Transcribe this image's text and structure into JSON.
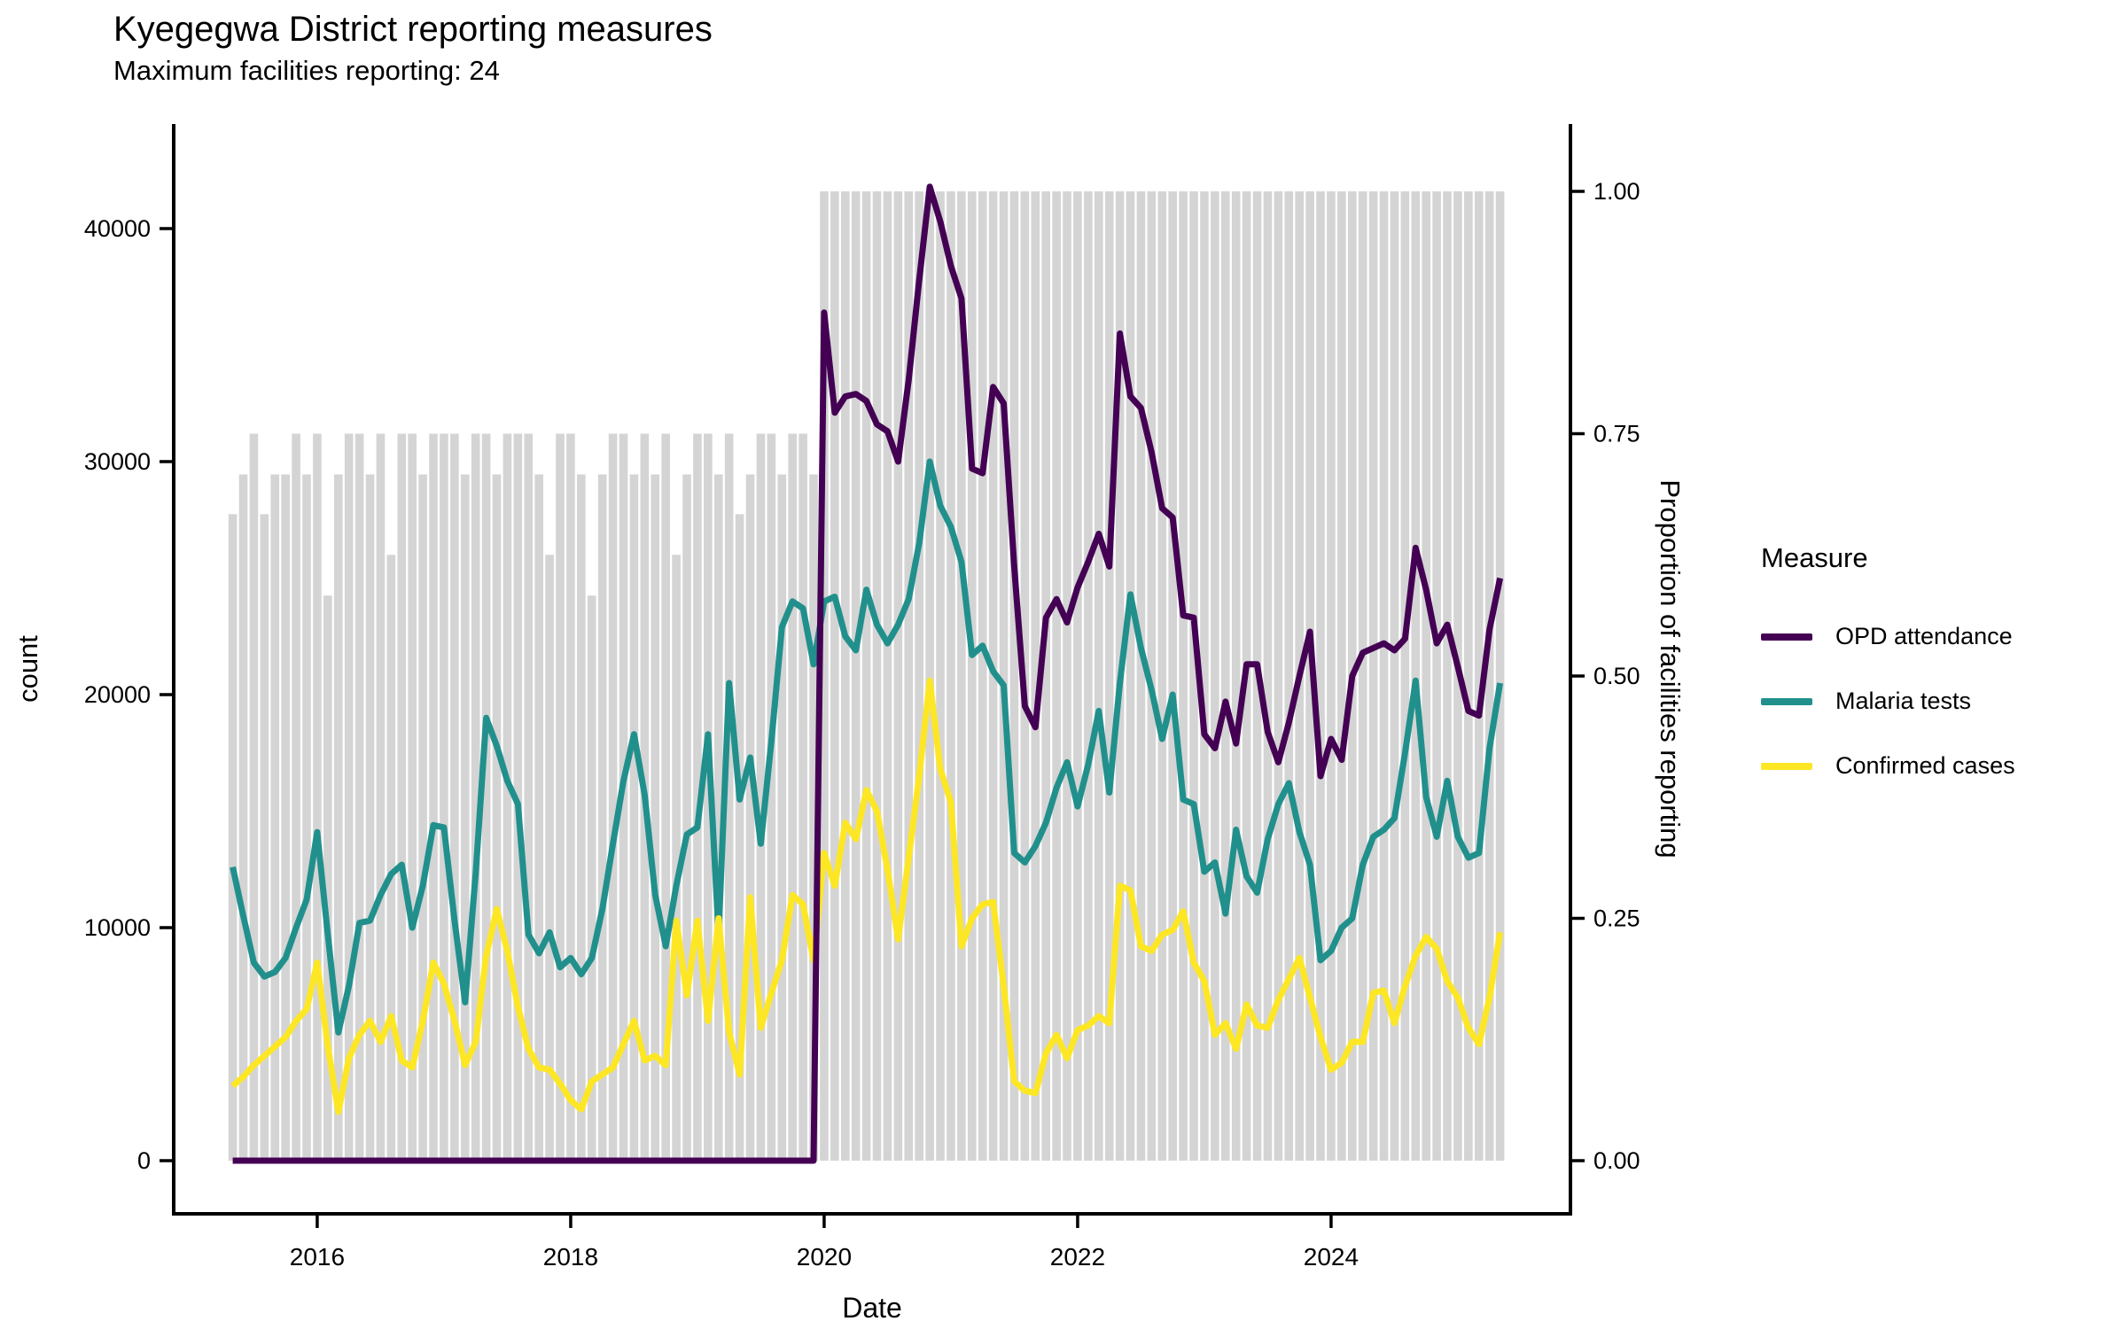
{
  "header": {
    "title": "Kyegegwa District reporting measures",
    "subtitle": "Maximum facilities reporting: 24"
  },
  "legend": {
    "title": "Measure",
    "items": [
      {
        "label": "OPD attendance"
      },
      {
        "label": "Malaria tests"
      },
      {
        "label": "Confirmed cases"
      }
    ]
  },
  "chart_data": {
    "type": "line",
    "title": "Kyegegwa District reporting measures",
    "subtitle": "Maximum facilities reporting: 24",
    "start_month": "2015-05",
    "n_months": 121,
    "x_axis": {
      "label": "Date",
      "tick_years": [
        2016,
        2018,
        2020,
        2022,
        2024
      ]
    },
    "y_left": {
      "label": "count",
      "ticks": [
        0,
        10000,
        20000,
        30000,
        40000
      ],
      "max": 43000
    },
    "y_right": {
      "label": "Proportion of facilities reporting",
      "ticks": [
        0.0,
        0.25,
        0.5,
        0.75,
        1.0
      ],
      "max": 1.0
    },
    "grid": false,
    "legend_position": "right",
    "bars": {
      "name": "Proportion of facilities reporting",
      "color": "#d4d4d4",
      "values": [
        0.667,
        0.708,
        0.75,
        0.667,
        0.708,
        0.708,
        0.75,
        0.708,
        0.75,
        0.583,
        0.708,
        0.75,
        0.75,
        0.708,
        0.75,
        0.625,
        0.75,
        0.75,
        0.708,
        0.75,
        0.75,
        0.75,
        0.708,
        0.75,
        0.75,
        0.708,
        0.75,
        0.75,
        0.75,
        0.708,
        0.625,
        0.75,
        0.75,
        0.708,
        0.583,
        0.708,
        0.75,
        0.75,
        0.708,
        0.75,
        0.708,
        0.75,
        0.625,
        0.708,
        0.75,
        0.75,
        0.708,
        0.75,
        0.667,
        0.708,
        0.75,
        0.75,
        0.708,
        0.75,
        0.75,
        0.708,
        1,
        1,
        1,
        1,
        1,
        1,
        1,
        1,
        1,
        1,
        1,
        1,
        1,
        1,
        1,
        1,
        1,
        1,
        1,
        1,
        1,
        1,
        1,
        1,
        1,
        1,
        1,
        1,
        1,
        1,
        1,
        1,
        1,
        1,
        1,
        1,
        1,
        1,
        1,
        1,
        1,
        1,
        1,
        1,
        1,
        1,
        1,
        1,
        1,
        1,
        1,
        1,
        1,
        1,
        1,
        1,
        1,
        1,
        1,
        1,
        1,
        1,
        1,
        1,
        1
      ]
    },
    "series": [
      {
        "name": "OPD attendance",
        "color": "#440154",
        "values": [
          0,
          0,
          0,
          0,
          0,
          0,
          0,
          0,
          0,
          0,
          0,
          0,
          0,
          0,
          0,
          0,
          0,
          0,
          0,
          0,
          0,
          0,
          0,
          0,
          0,
          0,
          0,
          0,
          0,
          0,
          0,
          0,
          0,
          0,
          0,
          0,
          0,
          0,
          0,
          0,
          0,
          0,
          0,
          0,
          0,
          0,
          0,
          0,
          0,
          0,
          0,
          0,
          0,
          0,
          0,
          0,
          36400,
          32100,
          32800,
          32900,
          32600,
          31600,
          31300,
          30000,
          33500,
          37800,
          41800,
          40300,
          38400,
          37000,
          29700,
          29500,
          33200,
          32500,
          25500,
          19500,
          18600,
          23300,
          24100,
          23100,
          24600,
          25700,
          26900,
          25500,
          35500,
          32800,
          32300,
          30400,
          28000,
          27600,
          23400,
          23300,
          18300,
          17700,
          19700,
          17900,
          21300,
          21300,
          18400,
          17100,
          18800,
          20800,
          22700,
          16500,
          18100,
          17200,
          20800,
          21800,
          22000,
          22200,
          21900,
          22400,
          26300,
          24500,
          22200,
          23000,
          21200,
          19300,
          19100,
          22800,
          25000
        ]
      },
      {
        "name": "Malaria tests",
        "color": "#21908c",
        "values": [
          12600,
          10500,
          8500,
          7900,
          8100,
          8700,
          10000,
          11200,
          14100,
          9700,
          5500,
          7500,
          10200,
          10300,
          11400,
          12300,
          12700,
          10000,
          11800,
          14400,
          14300,
          10300,
          6800,
          12300,
          19000,
          17800,
          16300,
          15300,
          9700,
          8900,
          9800,
          8300,
          8700,
          8000,
          8700,
          10800,
          13600,
          16300,
          18300,
          15700,
          11400,
          9200,
          11800,
          14000,
          14300,
          18300,
          9700,
          20500,
          15500,
          17300,
          13600,
          18000,
          22900,
          24000,
          23700,
          21300,
          24000,
          24200,
          22500,
          21900,
          24500,
          23000,
          22200,
          23000,
          24100,
          26500,
          30000,
          28100,
          27200,
          25700,
          21700,
          22100,
          21000,
          20400,
          13200,
          12800,
          13500,
          14500,
          16000,
          17100,
          15200,
          17000,
          19300,
          15800,
          20500,
          24300,
          22000,
          20200,
          18100,
          20000,
          15500,
          15300,
          12400,
          12800,
          10600,
          14200,
          12200,
          11500,
          13800,
          15300,
          16200,
          14100,
          12700,
          8600,
          9000,
          10000,
          10400,
          12700,
          13900,
          14200,
          14700,
          17500,
          20600,
          15600,
          13900,
          16300,
          13900,
          13000,
          13200,
          17700,
          20500
        ]
      },
      {
        "name": "Confirmed cases",
        "color": "#fde725",
        "values": [
          3200,
          3600,
          4100,
          4500,
          4900,
          5300,
          6000,
          6500,
          8500,
          4900,
          2100,
          4400,
          5400,
          6000,
          5100,
          6200,
          4300,
          4000,
          6000,
          8500,
          7600,
          6000,
          4100,
          5100,
          8800,
          10800,
          9000,
          6600,
          4800,
          4000,
          3900,
          3300,
          2600,
          2200,
          3400,
          3700,
          4000,
          5000,
          6000,
          4300,
          4500,
          4100,
          10300,
          7100,
          10300,
          6000,
          10400,
          5500,
          3700,
          11300,
          5700,
          7200,
          8600,
          11400,
          11000,
          8600,
          13200,
          11800,
          14500,
          13800,
          15900,
          15000,
          12500,
          9500,
          13000,
          16500,
          20600,
          16800,
          15400,
          9200,
          10400,
          11000,
          11100,
          7500,
          3400,
          3000,
          2900,
          4600,
          5400,
          4400,
          5600,
          5800,
          6200,
          5900,
          11800,
          11600,
          9200,
          9000,
          9700,
          9900,
          10700,
          8500,
          7700,
          5400,
          5900,
          4800,
          6700,
          5800,
          5700,
          6900,
          7800,
          8700,
          7000,
          5300,
          3900,
          4200,
          5100,
          5100,
          7200,
          7300,
          5900,
          7500,
          8800,
          9600,
          9100,
          7700,
          7000,
          5700,
          5000,
          7000,
          9800
        ]
      }
    ]
  }
}
